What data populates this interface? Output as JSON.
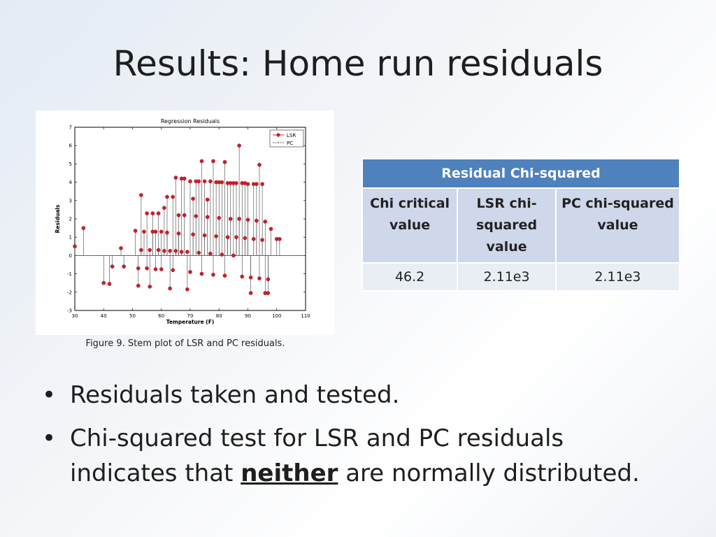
{
  "slide": {
    "title": "Results: Home run residuals",
    "caption": "Figure 9. Stem plot of LSR and PC residuals."
  },
  "table": {
    "header": "Residual Chi-squared",
    "columns": [
      "Chi critical value",
      "LSR chi-squared value",
      "PC chi-squared value"
    ],
    "values": [
      "46.2",
      "2.11e3",
      "2.11e3"
    ]
  },
  "bullets": {
    "b1": "Residuals taken and tested.",
    "b2_pre": "Chi-squared test for LSR and PC residuals indicates that ",
    "b2_bold": "neither",
    "b2_post": " are normally distributed."
  },
  "chart_data": {
    "type": "scatter",
    "title": "Regression Residuals",
    "xlabel": "Temperature (F)",
    "ylabel": "Residuals",
    "xlim": [
      30,
      110
    ],
    "ylim": [
      -3,
      7
    ],
    "xticks": [
      30,
      40,
      50,
      60,
      70,
      80,
      90,
      100,
      110
    ],
    "yticks": [
      -3,
      -2,
      -1,
      0,
      1,
      2,
      3,
      4,
      5,
      6,
      7
    ],
    "legend": {
      "placement": "top-right",
      "entries": [
        "LSR",
        "PC"
      ]
    },
    "colors": {
      "lsr": "#cc1f2a",
      "pc": "#555555"
    },
    "grid": false,
    "series": [
      {
        "name": "LSR",
        "x": [
          30,
          33,
          40,
          42,
          43,
          46,
          47,
          51,
          52,
          53,
          55,
          56,
          57,
          58,
          59,
          60,
          61,
          62,
          63,
          64,
          65,
          66,
          67,
          68,
          69,
          70,
          71,
          72,
          73,
          74,
          75,
          76,
          77,
          78,
          79,
          80,
          81,
          82,
          83,
          84,
          85,
          86,
          87,
          88,
          89,
          90,
          91,
          92,
          93,
          94,
          95,
          96,
          97,
          98,
          100,
          101
        ],
        "y": [
          0.5,
          1.5,
          -1.5,
          -1.55,
          -0.6,
          0.4,
          -0.6,
          1.35,
          -1.65,
          3.3,
          2.3,
          -1.7,
          2.3,
          1.3,
          2.3,
          1.3,
          2.6,
          3.2,
          -1.8,
          3.2,
          4.25,
          2.2,
          4.2,
          4.2,
          -1.85,
          4.05,
          3.1,
          4.05,
          4.05,
          5.15,
          4.05,
          3.05,
          4.05,
          5.15,
          4.0,
          4.0,
          4.0,
          5.1,
          3.95,
          3.95,
          3.95,
          3.95,
          6.0,
          3.95,
          3.95,
          3.9,
          -2.05,
          3.9,
          3.9,
          4.95,
          3.9,
          -2.05,
          -2.05,
          1.45,
          0.9,
          0.9
        ]
      },
      {
        "name": "PC",
        "x": [
          30,
          33,
          40,
          42,
          43,
          46,
          47,
          51,
          52,
          53,
          55,
          56,
          57,
          58,
          59,
          60,
          61,
          62,
          63,
          64,
          65,
          66,
          67,
          68,
          69,
          70,
          71,
          72,
          73,
          74,
          75,
          76,
          77,
          78,
          79,
          80,
          81,
          82,
          83,
          84,
          85,
          86,
          87,
          88,
          89,
          90,
          91,
          92,
          93,
          94,
          95,
          96,
          97,
          98,
          100,
          101
        ],
        "y": [
          0.5,
          1.5,
          -1.5,
          -1.55,
          -0.6,
          0.4,
          -0.6,
          1.35,
          -1.65,
          3.3,
          2.3,
          -1.7,
          2.3,
          1.3,
          2.3,
          1.3,
          2.6,
          3.2,
          -1.8,
          3.2,
          4.25,
          2.2,
          4.2,
          4.2,
          -1.85,
          4.05,
          3.1,
          4.05,
          4.05,
          5.15,
          4.05,
          3.05,
          4.05,
          5.15,
          4.0,
          4.0,
          4.0,
          5.1,
          3.95,
          3.95,
          3.95,
          3.95,
          6.0,
          3.95,
          3.95,
          3.9,
          -2.05,
          3.9,
          3.9,
          4.95,
          3.9,
          -2.05,
          -2.05,
          1.45,
          0.9,
          0.9
        ]
      },
      {
        "name": "",
        "x": [
          52,
          53,
          54,
          55,
          56,
          57,
          58,
          59,
          60,
          61,
          62,
          63,
          64,
          65,
          66,
          67,
          68,
          69,
          70,
          71,
          72,
          73,
          74,
          75,
          76,
          77,
          78,
          79,
          80,
          81,
          82,
          83,
          84,
          85,
          86,
          87,
          88,
          89,
          90,
          91,
          92,
          93,
          94,
          95,
          96,
          97
        ],
        "y": [
          -0.7,
          0.3,
          1.3,
          -0.7,
          0.3,
          1.3,
          -0.75,
          0.3,
          -0.75,
          0.25,
          1.25,
          0.25,
          -0.8,
          0.25,
          1.2,
          0.2,
          2.2,
          0.2,
          -0.9,
          1.15,
          2.15,
          0.15,
          -1.0,
          1.1,
          2.1,
          0.1,
          -1.05,
          1.05,
          2.05,
          0.05,
          -1.1,
          1.0,
          2.0,
          0.0,
          1.0,
          2.0,
          -1.15,
          0.95,
          1.95,
          -1.2,
          0.9,
          1.9,
          -1.25,
          0.85,
          1.85,
          -1.3
        ]
      }
    ]
  }
}
